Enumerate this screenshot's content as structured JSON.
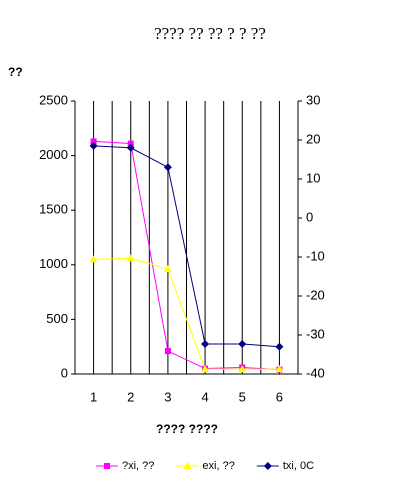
{
  "chart_data": {
    "type": "line",
    "title": "???? ?? ?? ? ? ??",
    "y_label": "??",
    "x_label": "???? ????",
    "categories": [
      "1",
      "2",
      "3",
      "4",
      "5",
      "6"
    ],
    "series": [
      {
        "name": "?xi, ??",
        "color": "#ff00ff",
        "marker": "square",
        "values": [
          2130,
          2110,
          210,
          50,
          60,
          40
        ]
      },
      {
        "name": "exi, ??",
        "color": "#ffff00",
        "marker": "triangle",
        "values": [
          1050,
          1060,
          960,
          45,
          45,
          45
        ]
      },
      {
        "name": "txi, 0C",
        "color": "#000080",
        "marker": "diamond",
        "axis": "y2",
        "values": [
          18.5,
          18,
          13,
          -32.3,
          -32.3,
          -33
        ]
      }
    ],
    "ylim": [
      0,
      2500
    ],
    "yticks": [
      0,
      500,
      1000,
      1500,
      2000,
      2500
    ],
    "y2lim": [
      -40,
      30
    ],
    "y2ticks": [
      -40,
      -30,
      -20,
      -10,
      0,
      10,
      20,
      30
    ],
    "grid": true,
    "legend": "bottom"
  }
}
